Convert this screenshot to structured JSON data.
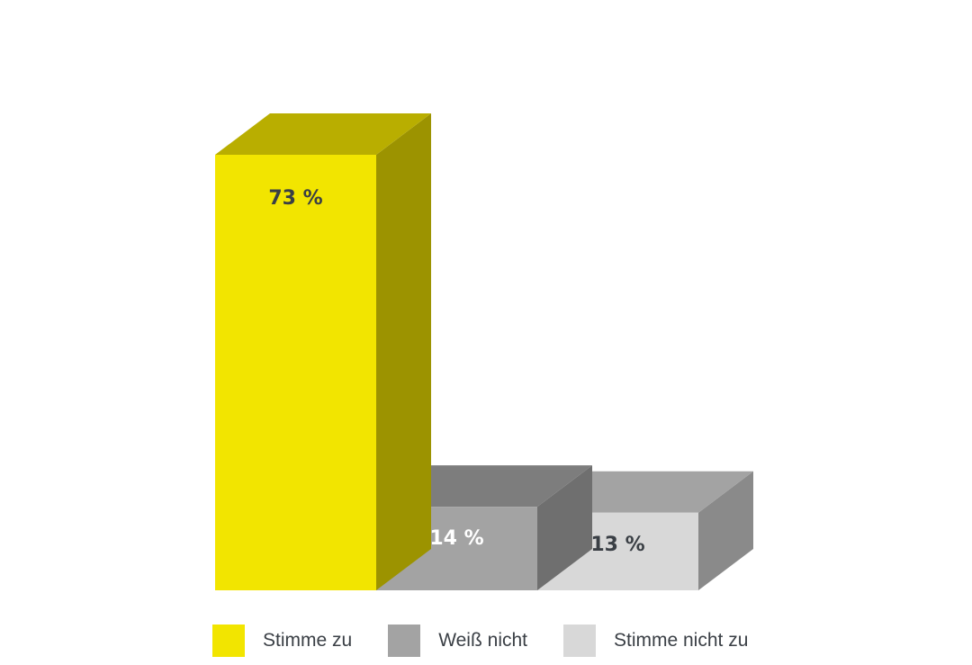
{
  "chart_data": {
    "type": "bar",
    "categories": [
      "Stimme zu",
      "Weiß nicht",
      "Stimme nicht zu"
    ],
    "values": [
      73,
      14,
      13
    ],
    "value_labels": [
      "73 %",
      "14 %",
      "13 %"
    ],
    "ylim": [
      0,
      80
    ],
    "grid": false,
    "legend_position": "bottom",
    "colors": {
      "front": [
        "#f2e500",
        "#a3a3a3",
        "#d8d8d8"
      ],
      "top": [
        "#b9ae00",
        "#7d7d7d",
        "#a3a3a3"
      ],
      "side": [
        "#9c9300",
        "#6f6f6f",
        "#8a8a8a"
      ],
      "label": [
        "#3a3f45",
        "#ffffff",
        "#3a3f45"
      ]
    }
  }
}
